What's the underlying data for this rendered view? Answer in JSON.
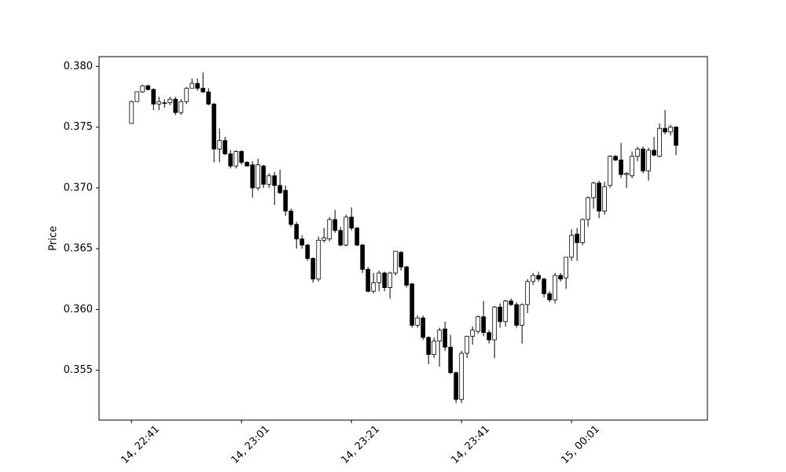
{
  "chart_data": {
    "type": "candlestick",
    "ylabel": "Price",
    "up_color": "#ffffff",
    "down_color": "#000000",
    "edge_color": "#000000",
    "ylim": [
      0.3509,
      0.3808
    ],
    "xlim": [
      -5.9,
      104.7
    ],
    "yticks": [
      {
        "value": 0.355,
        "label": "0.355"
      },
      {
        "value": 0.36,
        "label": "0.360"
      },
      {
        "value": 0.365,
        "label": "0.365"
      },
      {
        "value": 0.37,
        "label": "0.370"
      },
      {
        "value": 0.375,
        "label": "0.375"
      },
      {
        "value": 0.38,
        "label": "0.380"
      }
    ],
    "xticks": [
      {
        "value": 0,
        "label": "14, 22:41"
      },
      {
        "value": 20,
        "label": "14, 23:01"
      },
      {
        "value": 40,
        "label": "14, 23:21"
      },
      {
        "value": 60,
        "label": "14, 23:41"
      },
      {
        "value": 80,
        "label": "15, 00:01"
      }
    ],
    "open": [
      0.3753,
      0.3771,
      0.3779,
      0.3784,
      0.3781,
      0.3769,
      0.377,
      0.377,
      0.3773,
      0.3762,
      0.3771,
      0.3782,
      0.3786,
      0.3782,
      0.3779,
      0.3769,
      0.3732,
      0.3739,
      0.3728,
      0.3718,
      0.373,
      0.3721,
      0.3719,
      0.37,
      0.3718,
      0.3703,
      0.371,
      0.3702,
      0.3698,
      0.3681,
      0.367,
      0.3658,
      0.3653,
      0.3642,
      0.3625,
      0.3657,
      0.3658,
      0.3674,
      0.3665,
      0.3653,
      0.3676,
      0.3667,
      0.3653,
      0.3633,
      0.3615,
      0.3622,
      0.363,
      0.3618,
      0.363,
      0.3647,
      0.3635,
      0.3621,
      0.3587,
      0.3593,
      0.3577,
      0.3563,
      0.3574,
      0.3584,
      0.3569,
      0.3548,
      0.3526,
      0.3564,
      0.3578,
      0.3582,
      0.3594,
      0.3581,
      0.3575,
      0.3602,
      0.359,
      0.3607,
      0.3604,
      0.3587,
      0.3604,
      0.3623,
      0.3628,
      0.3625,
      0.3613,
      0.3608,
      0.3628,
      0.3626,
      0.3643,
      0.3662,
      0.3655,
      0.3674,
      0.3692,
      0.3704,
      0.3681,
      0.3702,
      0.3726,
      0.3723,
      0.3711,
      0.371,
      0.3726,
      0.3732,
      0.3714,
      0.3731,
      0.3726,
      0.3749,
      0.3746,
      0.375
    ],
    "high": [
      0.3772,
      0.3779,
      0.3785,
      0.3785,
      0.3782,
      0.3775,
      0.3773,
      0.3775,
      0.3775,
      0.3773,
      0.3783,
      0.379,
      0.379,
      0.3795,
      0.3782,
      0.377,
      0.3749,
      0.3742,
      0.3731,
      0.3731,
      0.3731,
      0.3722,
      0.3722,
      0.3724,
      0.3719,
      0.3712,
      0.3713,
      0.3715,
      0.3702,
      0.3683,
      0.3672,
      0.3661,
      0.3654,
      0.3643,
      0.366,
      0.3667,
      0.3676,
      0.3682,
      0.3668,
      0.3678,
      0.3684,
      0.3668,
      0.3654,
      0.3635,
      0.363,
      0.3632,
      0.3631,
      0.3631,
      0.3648,
      0.3648,
      0.3636,
      0.3622,
      0.3595,
      0.3595,
      0.3578,
      0.3577,
      0.3585,
      0.359,
      0.3579,
      0.3549,
      0.3566,
      0.3578,
      0.3586,
      0.3595,
      0.3607,
      0.3583,
      0.3603,
      0.3605,
      0.3608,
      0.3609,
      0.3606,
      0.3605,
      0.3625,
      0.363,
      0.3631,
      0.3626,
      0.3615,
      0.363,
      0.363,
      0.3643,
      0.3666,
      0.3667,
      0.3675,
      0.3693,
      0.3705,
      0.3706,
      0.3705,
      0.3727,
      0.3727,
      0.3737,
      0.3713,
      0.373,
      0.3734,
      0.3734,
      0.3733,
      0.3742,
      0.3753,
      0.3764,
      0.3752,
      0.3751
    ],
    "low": [
      0.3753,
      0.3771,
      0.3778,
      0.378,
      0.3764,
      0.3764,
      0.3766,
      0.3768,
      0.376,
      0.376,
      0.3769,
      0.3782,
      0.378,
      0.3778,
      0.3768,
      0.3721,
      0.3721,
      0.3727,
      0.3716,
      0.3716,
      0.3719,
      0.3718,
      0.3692,
      0.3698,
      0.37,
      0.37,
      0.3686,
      0.3695,
      0.3677,
      0.3668,
      0.365,
      0.365,
      0.364,
      0.3622,
      0.3623,
      0.3655,
      0.3656,
      0.3663,
      0.3652,
      0.3652,
      0.3665,
      0.3652,
      0.363,
      0.3614,
      0.3613,
      0.3615,
      0.3615,
      0.3609,
      0.3628,
      0.3632,
      0.3618,
      0.3585,
      0.3585,
      0.3575,
      0.3555,
      0.356,
      0.3553,
      0.3566,
      0.3547,
      0.3523,
      0.3523,
      0.356,
      0.3571,
      0.358,
      0.3578,
      0.3572,
      0.356,
      0.3585,
      0.3586,
      0.3603,
      0.3585,
      0.3572,
      0.3597,
      0.362,
      0.3623,
      0.361,
      0.3606,
      0.3605,
      0.3623,
      0.3617,
      0.364,
      0.364,
      0.3653,
      0.3668,
      0.3683,
      0.3675,
      0.3678,
      0.37,
      0.3722,
      0.3708,
      0.37,
      0.3708,
      0.3722,
      0.3712,
      0.3706,
      0.3726,
      0.3725,
      0.3744,
      0.3743,
      0.3727
    ],
    "close": [
      0.3771,
      0.3779,
      0.3784,
      0.3781,
      0.3769,
      0.3771,
      0.377,
      0.3773,
      0.3762,
      0.3771,
      0.3782,
      0.3786,
      0.3782,
      0.3779,
      0.3769,
      0.3732,
      0.3739,
      0.3728,
      0.3718,
      0.373,
      0.3721,
      0.3718,
      0.37,
      0.3719,
      0.3703,
      0.371,
      0.3702,
      0.3696,
      0.3681,
      0.367,
      0.3658,
      0.3653,
      0.3642,
      0.3625,
      0.3657,
      0.3659,
      0.3674,
      0.3665,
      0.3653,
      0.3676,
      0.3667,
      0.3653,
      0.3633,
      0.3615,
      0.3622,
      0.363,
      0.3618,
      0.363,
      0.3648,
      0.3635,
      0.362,
      0.3587,
      0.3593,
      0.3577,
      0.3563,
      0.3574,
      0.3583,
      0.3569,
      0.3548,
      0.3526,
      0.3564,
      0.3578,
      0.3583,
      0.3594,
      0.3581,
      0.3575,
      0.3602,
      0.359,
      0.3607,
      0.3604,
      0.3587,
      0.3604,
      0.3623,
      0.3628,
      0.3625,
      0.3613,
      0.3608,
      0.3628,
      0.3625,
      0.3643,
      0.3661,
      0.3655,
      0.3674,
      0.3692,
      0.3704,
      0.3681,
      0.3701,
      0.3726,
      0.3723,
      0.3711,
      0.3712,
      0.3726,
      0.3732,
      0.3714,
      0.3731,
      0.3727,
      0.3749,
      0.3746,
      0.375,
      0.3735
    ]
  }
}
